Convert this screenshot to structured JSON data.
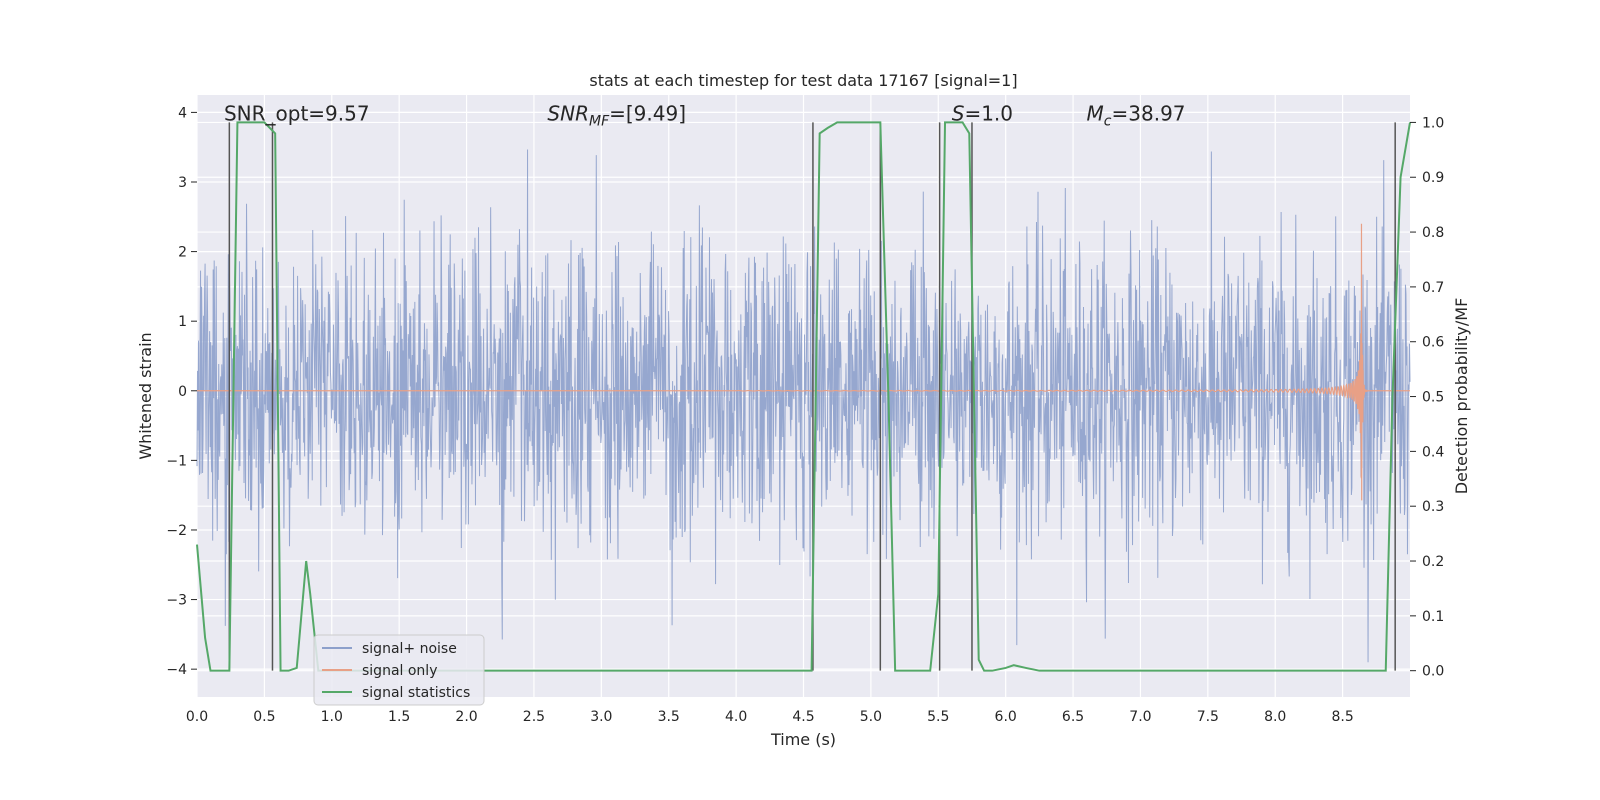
{
  "chart_data": {
    "type": "line",
    "title": "stats at each timestep for test data 17167 [signal=1]",
    "xlabel": "Time (s)",
    "ylabel": "Whitened strain",
    "y2label": "Detection probability/MF",
    "xlim": [
      0.0,
      9.0
    ],
    "ylim": [
      -4.4,
      4.25
    ],
    "y2lim": [
      -0.048,
      1.05
    ],
    "x_ticks": [
      "0.0",
      "0.5",
      "1.0",
      "1.5",
      "2.0",
      "2.5",
      "3.0",
      "3.5",
      "4.0",
      "4.5",
      "5.0",
      "5.5",
      "6.0",
      "6.5",
      "7.0",
      "7.5",
      "8.0",
      "8.5"
    ],
    "x_tick_values": [
      0.0,
      0.5,
      1.0,
      1.5,
      2.0,
      2.5,
      3.0,
      3.5,
      4.0,
      4.5,
      5.0,
      5.5,
      6.0,
      6.5,
      7.0,
      7.5,
      8.0,
      8.5
    ],
    "y_ticks": [
      "4",
      "3",
      "2",
      "1",
      "0",
      "−1",
      "−2",
      "−3",
      "−4"
    ],
    "y_tick_values": [
      4,
      3,
      2,
      1,
      0,
      -1,
      -2,
      -3,
      -4
    ],
    "y2_ticks": [
      "1.0",
      "0.9",
      "0.8",
      "0.7",
      "0.6",
      "0.5",
      "0.4",
      "0.3",
      "0.2",
      "0.1",
      "0.0"
    ],
    "y2_tick_values": [
      1.0,
      0.9,
      0.8,
      0.7,
      0.6,
      0.5,
      0.4,
      0.3,
      0.2,
      0.1,
      0.0
    ],
    "grid": true,
    "legend_position": "bottom-left",
    "annotations": [
      {
        "text": "SNR_opt=9.57",
        "x": 0.2,
        "y": 4.0
      },
      {
        "text": "SNR_MF=[9.49]",
        "x": 2.6,
        "y": 4.0
      },
      {
        "text": "S=1.0",
        "x": 5.6,
        "y": 4.0
      },
      {
        "text": "M_c=38.97",
        "x": 6.6,
        "y": 4.0
      }
    ],
    "vertical_lines_x": [
      0.24,
      0.56,
      4.57,
      5.07,
      5.51,
      5.75,
      8.89
    ],
    "series": [
      {
        "name": "signal+ noise",
        "color": "#8da0cb",
        "description": "whitened noisy strain, amplitude roughly within -3.8 to 3.8"
      },
      {
        "name": "signal only",
        "color": "#e8a086",
        "chirp_center_y": 0.0,
        "chirp_peak_time": 8.64,
        "chirp_peak_amplitude": 2.4
      },
      {
        "name": "signal statistics",
        "color": "#55a868",
        "x": [
          0.0,
          0.06,
          0.1,
          0.24,
          0.3,
          0.5,
          0.58,
          0.62,
          0.68,
          0.74,
          0.81,
          0.84,
          0.9,
          1.5,
          2.5,
          3.5,
          4.56,
          4.62,
          4.68,
          4.75,
          5.0,
          5.07,
          5.13,
          5.18,
          5.44,
          5.5,
          5.55,
          5.6,
          5.68,
          5.73,
          5.8,
          5.84,
          5.9,
          6.0,
          6.06,
          6.15,
          6.25,
          6.5,
          7.0,
          8.0,
          8.82,
          8.87,
          8.93,
          9.0
        ],
        "y": [
          0.23,
          0.06,
          0.0,
          0.0,
          1.0,
          1.0,
          0.98,
          0.0,
          0.0,
          0.005,
          0.2,
          0.14,
          0.0,
          0.0,
          0.0,
          0.0,
          0.0,
          0.98,
          0.99,
          1.0,
          1.0,
          1.0,
          0.5,
          0.0,
          0.0,
          0.14,
          1.0,
          1.0,
          1.0,
          0.98,
          0.02,
          0.0,
          0.0,
          0.005,
          0.01,
          0.005,
          0.0,
          0.0,
          0.0,
          0.0,
          0.0,
          0.5,
          0.9,
          1.0
        ]
      }
    ]
  }
}
